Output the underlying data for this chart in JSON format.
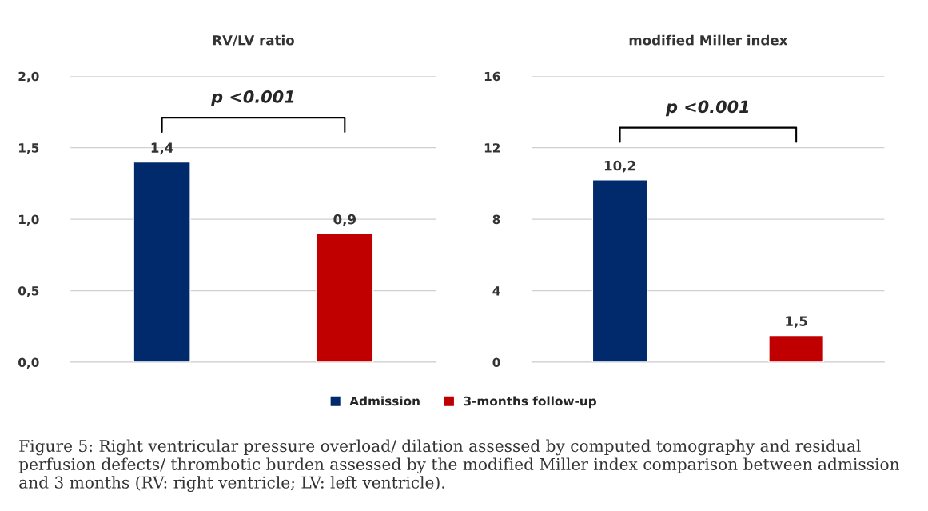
{
  "chart_data": [
    {
      "type": "bar",
      "title": "RV/LV ratio",
      "categories": [
        null,
        null
      ],
      "series": [
        {
          "name": "Admission",
          "color": "#002a6c",
          "values": [
            1.4,
            null
          ],
          "value_labels": [
            "1,4",
            null
          ]
        },
        {
          "name": "3-months follow-up",
          "color": "#c00000",
          "values": [
            null,
            0.9
          ],
          "value_labels": [
            null,
            "0,9"
          ]
        }
      ],
      "ylim": [
        0,
        2
      ],
      "yticks": [
        {
          "value": 0,
          "label": "0,0"
        },
        {
          "value": 0.5,
          "label": "0,5"
        },
        {
          "value": 1,
          "label": "1,0"
        },
        {
          "value": 1.5,
          "label": "1,5"
        },
        {
          "value": 2,
          "label": "2,0"
        }
      ],
      "grid": "y",
      "legend": "bottom",
      "annotations": [
        "p <0.001",
        "Figure 5: Right ventricular pressure overload/ dilation assessed by computed tomography and residual perfusion defects/ thrombotic burden assessed by the modified Miller index comparison between admission and 3 months (RV: right ventricle; LV: left ventricle)."
      ]
    },
    {
      "type": "bar",
      "title": "modified Miller index",
      "categories": [
        null,
        null
      ],
      "series": [
        {
          "color": "#002a6c",
          "values": [
            10.2,
            null
          ],
          "value_labels": [
            "10,2",
            null
          ]
        },
        {
          "color": "#c00000",
          "values": [
            null,
            1.5
          ],
          "value_labels": [
            null,
            "1,5"
          ]
        }
      ],
      "ylim": [
        0,
        16
      ],
      "yticks": [
        0,
        4,
        8,
        12,
        16
      ],
      "grid": "y",
      "annotations": [
        "p <0.001"
      ]
    }
  ]
}
